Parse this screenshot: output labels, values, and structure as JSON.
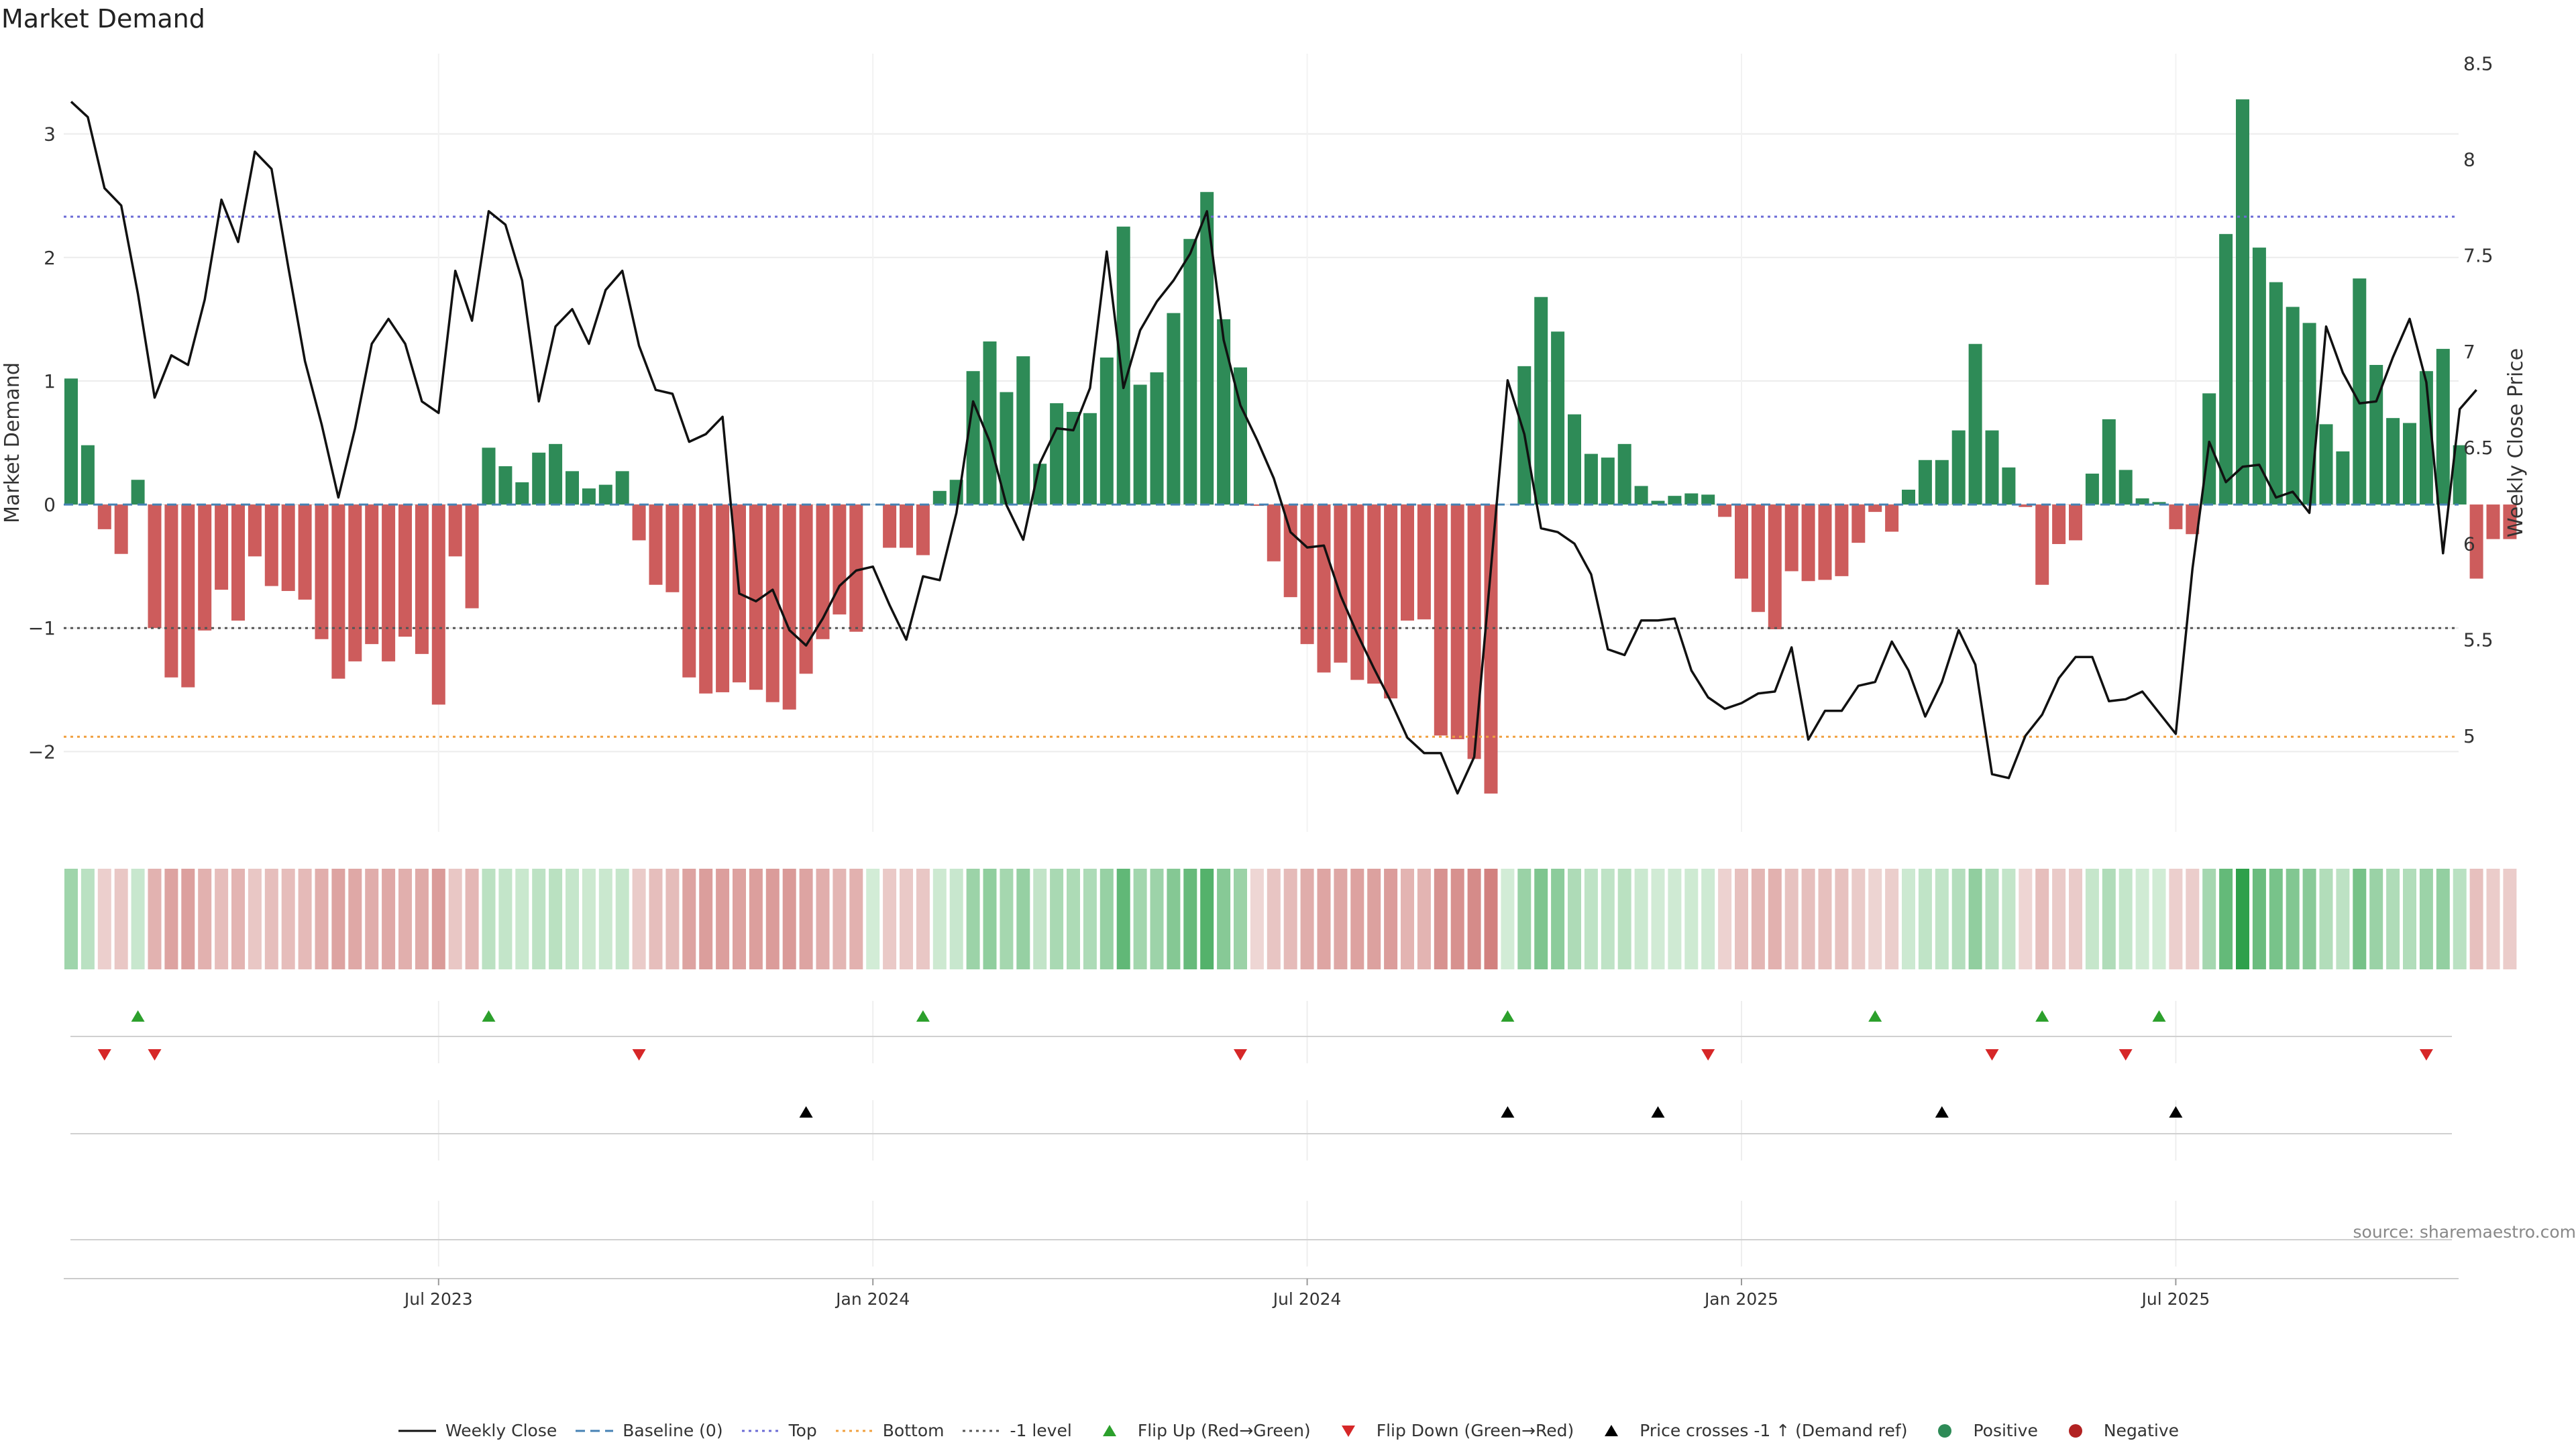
{
  "title": "Market Demand",
  "source": "source: sharemaestro.com",
  "colors": {
    "pos": "#2e8b57",
    "neg": "#cd5c5c",
    "price": "#111111",
    "top": "#6b6bd6",
    "bottom": "#f0a040",
    "minus1": "#555555",
    "baseline": "#4682b4",
    "flip_up": "#2ca02c",
    "flip_down": "#d62728"
  },
  "legend": [
    {
      "id": "weekly-close",
      "label": "Weekly Close",
      "type": "line",
      "color": "#111111"
    },
    {
      "id": "baseline",
      "label": "Baseline (0)",
      "type": "dashed",
      "color": "#4682b4"
    },
    {
      "id": "top",
      "label": "Top",
      "type": "dotted",
      "color": "#6b6bd6"
    },
    {
      "id": "bottom",
      "label": "Bottom",
      "type": "dotted",
      "color": "#f0a040"
    },
    {
      "id": "minus1",
      "label": "-1 level",
      "type": "dotted",
      "color": "#555555"
    },
    {
      "id": "flip-up",
      "label": "Flip Up (Red→Green)",
      "type": "tri-up",
      "color": "#2ca02c"
    },
    {
      "id": "flip-down",
      "label": "Flip Down (Green→Red)",
      "type": "tri-down",
      "color": "#d62728"
    },
    {
      "id": "price-cross",
      "label": "Price crosses -1 ↑ (Demand ref)",
      "type": "tri-up",
      "color": "#000000"
    },
    {
      "id": "positive",
      "label": "Positive",
      "type": "dot",
      "color": "#2e8b57"
    },
    {
      "id": "negative",
      "label": "Negative",
      "type": "dot",
      "color": "#b22222"
    }
  ],
  "chart_data": {
    "type": "bar",
    "title": "Market Demand",
    "ylabel": "Market Demand",
    "y2label": "Weekly Close Price",
    "ylim": [
      -2.65,
      3.65
    ],
    "y2lim": [
      4.5,
      8.55
    ],
    "yticks": [
      -2,
      -1,
      0,
      1,
      2,
      3
    ],
    "yticklabels": [
      "−2",
      "−1",
      "0",
      "1",
      "2",
      "3"
    ],
    "y2ticks": [
      5,
      5.5,
      6,
      6.5,
      7,
      7.5,
      8,
      8.5
    ],
    "y2ticklabels": [
      "5",
      "5.5",
      "6",
      "6.5",
      "7",
      "7.5",
      "8",
      "8.5"
    ],
    "xticks": [
      22,
      48,
      74,
      100,
      126
    ],
    "xticklabels": [
      "Jul 2023",
      "Jan 2024",
      "Jul 2024",
      "Jan 2025",
      "Jul 2025"
    ],
    "levels": {
      "top": 2.33,
      "bottom": -1.88,
      "minus1": -1.0,
      "baseline": 0
    },
    "demand": [
      1.02,
      0.48,
      -0.2,
      -0.4,
      0.2,
      -1.0,
      -1.4,
      -1.48,
      -1.02,
      -0.69,
      -0.94,
      -0.42,
      -0.66,
      -0.7,
      -0.77,
      -1.09,
      -1.41,
      -1.27,
      -1.13,
      -1.27,
      -1.07,
      -1.21,
      -1.62,
      -0.42,
      -0.84,
      0.46,
      0.31,
      0.18,
      0.42,
      0.49,
      0.27,
      0.13,
      0.16,
      0.27,
      -0.29,
      -0.65,
      -0.71,
      -1.4,
      -1.53,
      -1.52,
      -1.44,
      -1.5,
      -1.6,
      -1.66,
      -1.37,
      -1.09,
      -0.89,
      -1.03,
      0.0,
      -0.35,
      -0.35,
      -0.41,
      0.11,
      0.2,
      1.08,
      1.32,
      0.91,
      1.2,
      0.33,
      0.82,
      0.75,
      0.74,
      1.19,
      2.25,
      0.97,
      1.07,
      1.55,
      2.15,
      2.53,
      1.5,
      1.11,
      -0.01,
      -0.46,
      -0.75,
      -1.13,
      -1.36,
      -1.28,
      -1.42,
      -1.45,
      -1.57,
      -0.94,
      -0.93,
      -1.87,
      -1.9,
      -2.06,
      -2.34,
      0.0,
      1.12,
      1.68,
      1.4,
      0.73,
      0.41,
      0.38,
      0.49,
      0.15,
      0.03,
      0.07,
      0.09,
      0.08,
      -0.1,
      -0.6,
      -0.87,
      -1.01,
      -0.54,
      -0.62,
      -0.61,
      -0.58,
      -0.31,
      -0.06,
      -0.22,
      0.12,
      0.36,
      0.36,
      0.6,
      1.3,
      0.6,
      0.3,
      -0.02,
      -0.65,
      -0.32,
      -0.29,
      0.25,
      0.69,
      0.28,
      0.05,
      0.02,
      -0.2,
      -0.24,
      0.9,
      2.19,
      3.28,
      2.08,
      1.8,
      1.6,
      1.47,
      0.65,
      0.43,
      1.83,
      1.13,
      0.7,
      0.66,
      1.08,
      1.26,
      0.48,
      -0.6,
      -0.28,
      -0.28
    ],
    "price": [
      8.3,
      8.22,
      7.85,
      7.76,
      7.3,
      6.76,
      6.98,
      6.93,
      7.27,
      7.79,
      7.57,
      8.04,
      7.95,
      7.44,
      6.95,
      6.62,
      6.24,
      6.6,
      7.04,
      7.17,
      7.04,
      6.74,
      6.68,
      7.42,
      7.16,
      7.73,
      7.66,
      7.37,
      6.74,
      7.13,
      7.22,
      7.04,
      7.32,
      7.42,
      7.03,
      6.8,
      6.78,
      6.53,
      6.57,
      6.66,
      5.74,
      5.7,
      5.76,
      5.55,
      5.47,
      5.61,
      5.78,
      5.86,
      5.88,
      5.68,
      5.5,
      5.83,
      5.81,
      6.16,
      6.74,
      6.53,
      6.2,
      6.02,
      6.42,
      6.6,
      6.59,
      6.81,
      7.52,
      6.81,
      7.11,
      7.26,
      7.37,
      7.51,
      7.73,
      7.06,
      6.72,
      6.54,
      6.34,
      6.06,
      5.98,
      5.99,
      5.73,
      5.53,
      5.35,
      5.18,
      4.99,
      4.91,
      4.91,
      4.7,
      4.89,
      5.87,
      6.85,
      6.57,
      6.08,
      6.06,
      6.0,
      5.84,
      5.45,
      5.42,
      5.6,
      5.6,
      5.61,
      5.34,
      5.2,
      5.14,
      5.17,
      5.22,
      5.23,
      5.46,
      4.98,
      5.13,
      5.13,
      5.26,
      5.28,
      5.49,
      5.34,
      5.1,
      5.28,
      5.55,
      5.37,
      4.8,
      4.78,
      5.0,
      5.11,
      5.3,
      5.41,
      5.41,
      5.18,
      5.19,
      5.23,
      5.12,
      5.01,
      5.87,
      6.53,
      6.32,
      6.4,
      6.41,
      6.24,
      6.27,
      6.16,
      7.13,
      6.89,
      6.73,
      6.74,
      6.97,
      7.17,
      6.84,
      5.95,
      6.7,
      6.8
    ],
    "flip_up_index": [
      4,
      25,
      51,
      86,
      108,
      118,
      125
    ],
    "flip_down_index": [
      2,
      5,
      34,
      70,
      98,
      115,
      123,
      141
    ],
    "price_cross_index": [
      44,
      86,
      95,
      112,
      126
    ]
  }
}
